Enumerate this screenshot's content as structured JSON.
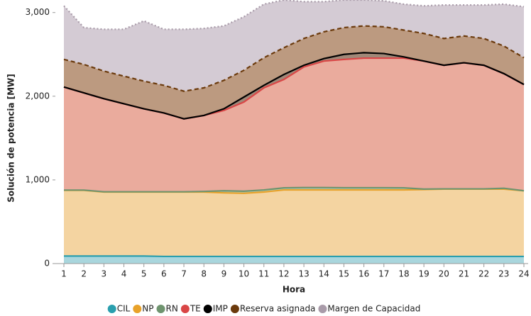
{
  "chart_data": {
    "type": "stacked_area",
    "xlabel": "Hora",
    "ylabel": "Solución de potencia [MW]",
    "x": [
      1,
      2,
      3,
      4,
      5,
      6,
      7,
      8,
      9,
      10,
      11,
      12,
      13,
      14,
      15,
      16,
      17,
      18,
      19,
      20,
      21,
      22,
      23,
      24
    ],
    "xlim": [
      1,
      24
    ],
    "ylim": [
      0,
      3150
    ],
    "yticks": [
      0,
      {
        "value": 1000,
        "label": "1,000"
      },
      {
        "value": 2000,
        "label": "2,000"
      },
      {
        "value": 3000,
        "label": "3,000"
      }
    ],
    "legend": "bottom",
    "series": [
      {
        "name": "CIL",
        "color": "#2a9fae",
        "fill": "#a9d6dd",
        "dash": "solid",
        "values": [
          90,
          90,
          90,
          90,
          90,
          85,
          85,
          85,
          85,
          85,
          85,
          85,
          85,
          85,
          85,
          85,
          85,
          85,
          85,
          85,
          85,
          85,
          85,
          85
        ]
      },
      {
        "name": "NP",
        "color": "#e8a22a",
        "fill": "#f4d4a1",
        "dash": "solid",
        "values": [
          785,
          785,
          765,
          765,
          765,
          770,
          770,
          770,
          760,
          755,
          770,
          795,
          795,
          795,
          795,
          795,
          795,
          795,
          800,
          805,
          805,
          805,
          805,
          785
        ]
      },
      {
        "name": "RN",
        "color": "#6f946f",
        "fill": "#b5c9ae",
        "dash": "solid",
        "values": [
          3,
          3,
          3,
          3,
          3,
          3,
          3,
          7,
          25,
          25,
          25,
          25,
          28,
          28,
          26,
          26,
          26,
          25,
          5,
          3,
          3,
          3,
          10,
          0
        ]
      },
      {
        "name": "TE",
        "color": "#d94646",
        "fill": "#eaab9d",
        "dash": "solid",
        "values": [
          1232,
          1162,
          1112,
          1052,
          992,
          942,
          872,
          908,
          960,
          1065,
          1220,
          1295,
          1442,
          1512,
          1534,
          1549,
          1549,
          1550,
          1530,
          1477,
          1507,
          1477,
          1370,
          1270
        ]
      },
      {
        "name": "IMP",
        "color": "#000000",
        "fill": "#a08878",
        "dash": "solid",
        "values": [
          0,
          0,
          0,
          0,
          0,
          0,
          0,
          0,
          20,
          60,
          30,
          60,
          20,
          30,
          60,
          65,
          55,
          15,
          0,
          0,
          0,
          0,
          0,
          0
        ]
      },
      {
        "name": "Reserva asignada",
        "color": "#6b3a0c",
        "fill": "#bc9a80",
        "dash": "dashed",
        "values": [
          330,
          340,
          330,
          330,
          330,
          330,
          330,
          330,
          340,
          320,
          330,
          320,
          320,
          320,
          320,
          320,
          320,
          320,
          330,
          320,
          320,
          320,
          330,
          320
        ]
      },
      {
        "name": "Margen de Capacidad",
        "color": "#a99ba9",
        "fill": "#d4cbd4",
        "dash": "dotted",
        "values": [
          640,
          440,
          500,
          560,
          720,
          670,
          740,
          710,
          650,
          640,
          640,
          570,
          440,
          360,
          330,
          310,
          310,
          310,
          330,
          400,
          370,
          400,
          500,
          610
        ]
      }
    ]
  }
}
